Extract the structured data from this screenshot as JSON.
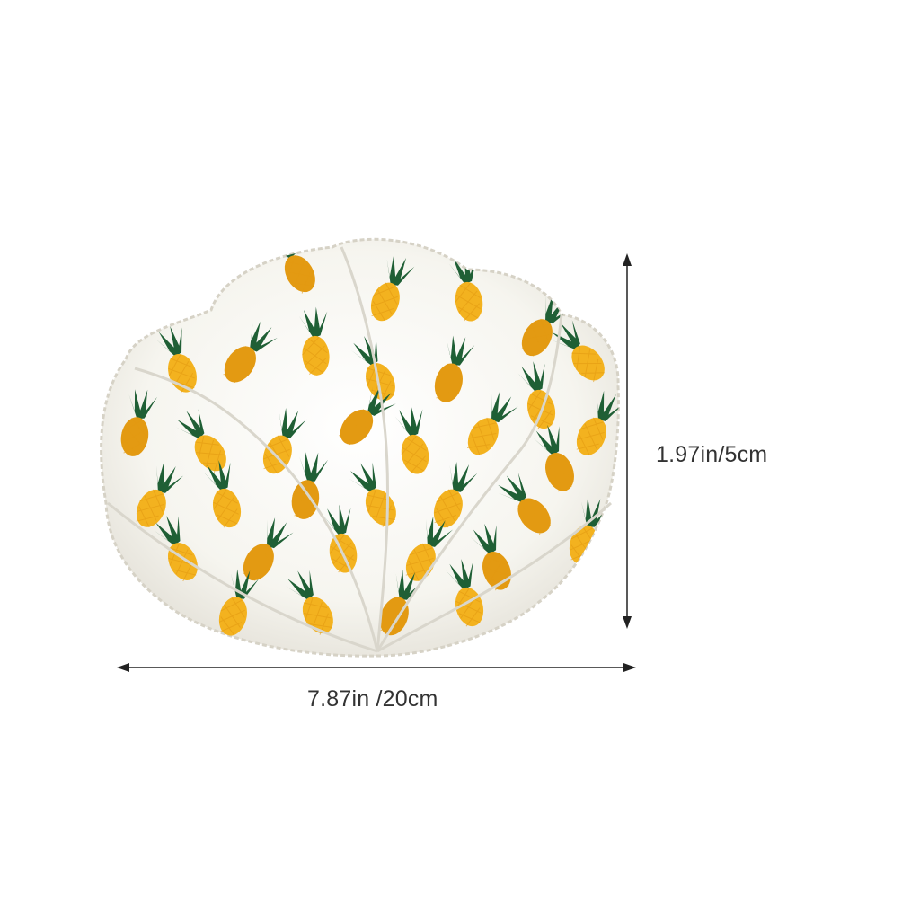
{
  "product": {
    "name": "pineapple-print bowl cozy",
    "colors": {
      "fabric": "#f8f7f2",
      "fabric_shadow": "#e6e4dc",
      "pineapple_body": "#f3b21f",
      "pineapple_body_dark": "#e39a12",
      "leaves": "#1f5f35",
      "stitch": "#cfcbbf"
    }
  },
  "dimensions": {
    "height_label": "1.97in/5cm",
    "width_label": "7.87in /20cm",
    "arrow_color": "#222222"
  }
}
